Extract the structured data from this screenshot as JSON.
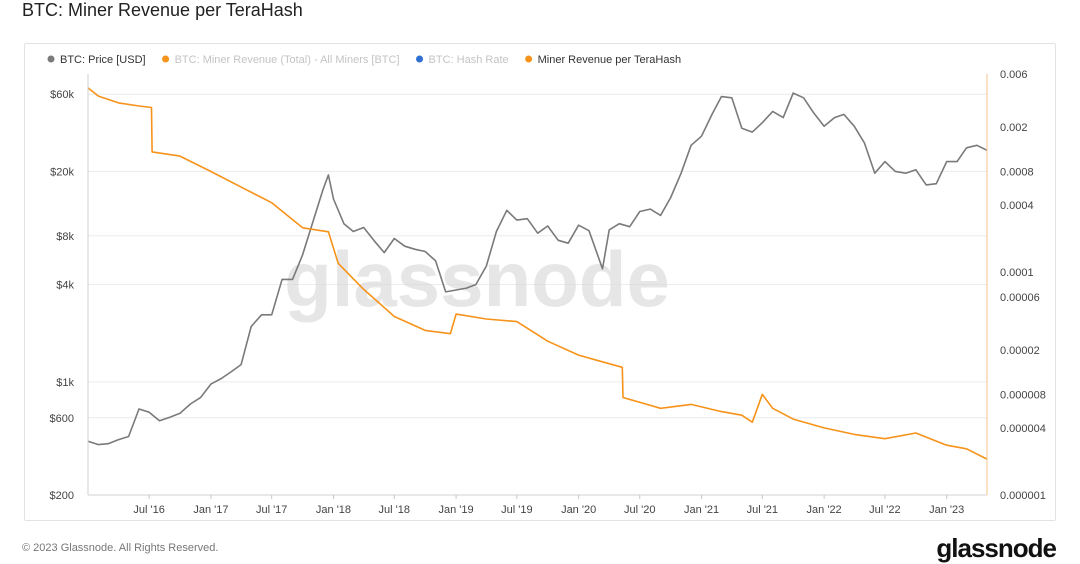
{
  "page": {
    "title": "BTC: Miner Revenue per TeraHash",
    "copyright": "© 2023 Glassnode. All Rights Reserved.",
    "brand": "glassnode",
    "watermark": "glassnode"
  },
  "chart_data": {
    "type": "line",
    "title": "BTC: Miner Revenue per TeraHash",
    "x_range": [
      "2016-01-01",
      "2023-05-01"
    ],
    "x_ticks": [
      "Jul '16",
      "Jan '17",
      "Jul '17",
      "Jan '18",
      "Jul '18",
      "Jan '19",
      "Jul '19",
      "Jan '20",
      "Jul '20",
      "Jan '21",
      "Jul '21",
      "Jan '22",
      "Jul '22",
      "Jan '23"
    ],
    "y_left": {
      "scale": "log",
      "range": [
        200,
        80000
      ],
      "ticks": [
        "$60k",
        "$20k",
        "$8k",
        "$4k",
        "$1k",
        "$600",
        "$200"
      ]
    },
    "y_right": {
      "scale": "log",
      "range": [
        1e-06,
        0.006
      ],
      "ticks": [
        "0.006",
        "0.002",
        "0.0008",
        "0.0004",
        "0.0001",
        "0.00006",
        "0.00002",
        "0.000008",
        "0.000004",
        "0.000001"
      ]
    },
    "legend": {
      "placement": "top-left",
      "items": [
        {
          "label": "BTC: Price [USD]",
          "color": "#7a7a7a",
          "active": true
        },
        {
          "label": "BTC: Miner Revenue (Total) - All Miners [BTC]",
          "color": "#f7931a",
          "active": false
        },
        {
          "label": "BTC: Hash Rate",
          "color": "#2f6fd0",
          "active": false
        },
        {
          "label": "Miner Revenue per TeraHash",
          "color": "#f7931a",
          "active": true
        }
      ]
    },
    "grid": true,
    "series": [
      {
        "name": "BTC: Price [USD]",
        "color": "#7a7a7a",
        "axis": "left",
        "points": [
          [
            "2016-01-01",
            430
          ],
          [
            "2016-02-01",
            410
          ],
          [
            "2016-03-01",
            415
          ],
          [
            "2016-04-01",
            440
          ],
          [
            "2016-05-01",
            460
          ],
          [
            "2016-06-01",
            680
          ],
          [
            "2016-07-01",
            650
          ],
          [
            "2016-08-01",
            575
          ],
          [
            "2016-09-01",
            605
          ],
          [
            "2016-10-01",
            640
          ],
          [
            "2016-11-01",
            730
          ],
          [
            "2016-12-01",
            800
          ],
          [
            "2017-01-01",
            970
          ],
          [
            "2017-02-01",
            1050
          ],
          [
            "2017-03-01",
            1150
          ],
          [
            "2017-04-01",
            1280
          ],
          [
            "2017-05-01",
            2200
          ],
          [
            "2017-06-01",
            2600
          ],
          [
            "2017-07-01",
            2600
          ],
          [
            "2017-08-01",
            4300
          ],
          [
            "2017-09-01",
            4300
          ],
          [
            "2017-10-01",
            6100
          ],
          [
            "2017-11-01",
            9800
          ],
          [
            "2017-12-01",
            15500
          ],
          [
            "2017-12-17",
            19000
          ],
          [
            "2018-01-01",
            13500
          ],
          [
            "2018-02-01",
            9500
          ],
          [
            "2018-03-01",
            8500
          ],
          [
            "2018-04-01",
            9000
          ],
          [
            "2018-05-01",
            7500
          ],
          [
            "2018-06-01",
            6300
          ],
          [
            "2018-07-01",
            7700
          ],
          [
            "2018-08-01",
            6900
          ],
          [
            "2018-09-01",
            6600
          ],
          [
            "2018-10-01",
            6400
          ],
          [
            "2018-11-01",
            5600
          ],
          [
            "2018-12-01",
            3600
          ],
          [
            "2019-01-01",
            3700
          ],
          [
            "2019-02-01",
            3800
          ],
          [
            "2019-03-01",
            4000
          ],
          [
            "2019-04-01",
            5200
          ],
          [
            "2019-05-01",
            8500
          ],
          [
            "2019-06-01",
            11500
          ],
          [
            "2019-07-01",
            10000
          ],
          [
            "2019-08-01",
            10200
          ],
          [
            "2019-09-01",
            8300
          ],
          [
            "2019-10-01",
            9200
          ],
          [
            "2019-11-01",
            7500
          ],
          [
            "2019-12-01",
            7200
          ],
          [
            "2020-01-01",
            9300
          ],
          [
            "2020-02-01",
            8600
          ],
          [
            "2020-03-12",
            5000
          ],
          [
            "2020-04-01",
            8700
          ],
          [
            "2020-05-01",
            9500
          ],
          [
            "2020-06-01",
            9100
          ],
          [
            "2020-07-01",
            11300
          ],
          [
            "2020-08-01",
            11700
          ],
          [
            "2020-09-01",
            10700
          ],
          [
            "2020-10-01",
            13800
          ],
          [
            "2020-11-01",
            19500
          ],
          [
            "2020-12-01",
            29000
          ],
          [
            "2021-01-01",
            33000
          ],
          [
            "2021-02-01",
            45000
          ],
          [
            "2021-03-01",
            58000
          ],
          [
            "2021-04-01",
            57000
          ],
          [
            "2021-05-01",
            37000
          ],
          [
            "2021-06-01",
            35000
          ],
          [
            "2021-07-01",
            40000
          ],
          [
            "2021-08-01",
            47000
          ],
          [
            "2021-09-01",
            43000
          ],
          [
            "2021-10-01",
            61000
          ],
          [
            "2021-11-01",
            57000
          ],
          [
            "2021-12-01",
            46000
          ],
          [
            "2022-01-01",
            38000
          ],
          [
            "2022-02-01",
            43000
          ],
          [
            "2022-03-01",
            45000
          ],
          [
            "2022-04-01",
            38000
          ],
          [
            "2022-05-01",
            30000
          ],
          [
            "2022-06-01",
            19500
          ],
          [
            "2022-07-01",
            23000
          ],
          [
            "2022-08-01",
            20000
          ],
          [
            "2022-09-01",
            19500
          ],
          [
            "2022-10-01",
            20500
          ],
          [
            "2022-11-01",
            16500
          ],
          [
            "2022-12-01",
            16800
          ],
          [
            "2023-01-01",
            23000
          ],
          [
            "2023-02-01",
            23000
          ],
          [
            "2023-03-01",
            28000
          ],
          [
            "2023-04-01",
            29000
          ],
          [
            "2023-05-01",
            27000
          ]
        ]
      },
      {
        "name": "Miner Revenue per TeraHash",
        "color": "#f7931a",
        "axis": "right",
        "points": [
          [
            "2016-01-01",
            0.0045
          ],
          [
            "2016-02-01",
            0.0038
          ],
          [
            "2016-04-01",
            0.0033
          ],
          [
            "2016-06-01",
            0.0031
          ],
          [
            "2016-07-08",
            0.003
          ],
          [
            "2016-07-10",
            0.0012
          ],
          [
            "2016-10-01",
            0.0011
          ],
          [
            "2017-01-01",
            0.0008
          ],
          [
            "2017-04-01",
            0.00058
          ],
          [
            "2017-07-01",
            0.00042
          ],
          [
            "2017-10-01",
            0.00025
          ],
          [
            "2017-12-17",
            0.00023
          ],
          [
            "2018-01-15",
            0.00012
          ],
          [
            "2018-04-01",
            7e-05
          ],
          [
            "2018-07-01",
            4e-05
          ],
          [
            "2018-10-01",
            3e-05
          ],
          [
            "2018-12-15",
            2.8e-05
          ],
          [
            "2019-01-01",
            4.2e-05
          ],
          [
            "2019-04-01",
            3.8e-05
          ],
          [
            "2019-07-01",
            3.6e-05
          ],
          [
            "2019-10-01",
            2.4e-05
          ],
          [
            "2020-01-01",
            1.8e-05
          ],
          [
            "2020-03-01",
            1.6e-05
          ],
          [
            "2020-05-10",
            1.4e-05
          ],
          [
            "2020-05-12",
            7.5e-06
          ],
          [
            "2020-09-01",
            6e-06
          ],
          [
            "2020-12-01",
            6.5e-06
          ],
          [
            "2021-03-01",
            5.6e-06
          ],
          [
            "2021-05-01",
            5.2e-06
          ],
          [
            "2021-06-01",
            4.5e-06
          ],
          [
            "2021-07-01",
            8e-06
          ],
          [
            "2021-08-01",
            6e-06
          ],
          [
            "2021-10-01",
            4.8e-06
          ],
          [
            "2022-01-01",
            4e-06
          ],
          [
            "2022-04-01",
            3.5e-06
          ],
          [
            "2022-07-01",
            3.2e-06
          ],
          [
            "2022-10-01",
            3.6e-06
          ],
          [
            "2023-01-01",
            2.8e-06
          ],
          [
            "2023-03-01",
            2.6e-06
          ],
          [
            "2023-05-01",
            2.1e-06
          ]
        ]
      }
    ]
  }
}
